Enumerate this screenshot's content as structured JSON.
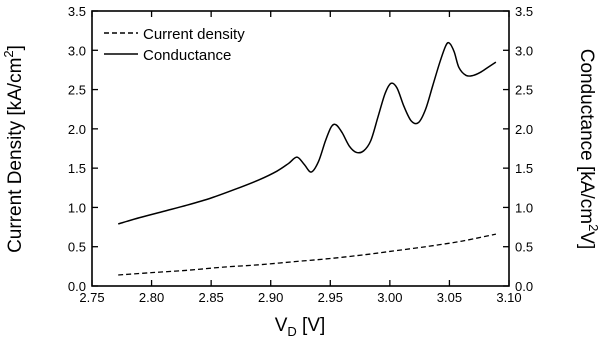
{
  "chart_data": {
    "type": "line",
    "xlabel": {
      "main": "V",
      "sub": "D",
      "unit": " [V]"
    },
    "ylabel_left": {
      "main": "Current Density [kA/cm",
      "sup": "2",
      "close": "]"
    },
    "ylabel_right": {
      "main": "Conductance [kA/cm",
      "sup": "2",
      "tail": "V]"
    },
    "xlim": [
      2.75,
      3.1
    ],
    "ylim": [
      0.0,
      3.5
    ],
    "xticks": [
      "2.75",
      "2.80",
      "2.85",
      "2.90",
      "2.95",
      "3.00",
      "3.05",
      "3.10"
    ],
    "yticks": [
      "0.0",
      "0.5",
      "1.0",
      "1.5",
      "2.0",
      "2.5",
      "3.0",
      "3.5"
    ],
    "yticks_right": [
      "0.0",
      "0.5",
      "1.0",
      "1.5",
      "2.0",
      "2.5",
      "3.0",
      "3.5"
    ],
    "legend_position": "top-left",
    "grid": false,
    "series": [
      {
        "name": "Current density",
        "style": "dashed",
        "axis": "left",
        "x": [
          2.772,
          2.8,
          2.83,
          2.86,
          2.89,
          2.92,
          2.95,
          2.98,
          3.0,
          3.03,
          3.06,
          3.089
        ],
        "y": [
          0.14,
          0.17,
          0.2,
          0.24,
          0.27,
          0.31,
          0.35,
          0.4,
          0.44,
          0.5,
          0.57,
          0.66
        ]
      },
      {
        "name": "Conductance",
        "style": "solid",
        "axis": "right",
        "x": [
          2.772,
          2.79,
          2.81,
          2.83,
          2.85,
          2.87,
          2.89,
          2.905,
          2.915,
          2.922,
          2.928,
          2.934,
          2.94,
          2.946,
          2.951,
          2.955,
          2.96,
          2.966,
          2.972,
          2.978,
          2.984,
          2.99,
          2.996,
          3.001,
          3.006,
          3.012,
          3.018,
          3.024,
          3.03,
          3.036,
          3.042,
          3.047,
          3.05,
          3.054,
          3.058,
          3.064,
          3.07,
          3.076,
          3.082,
          3.089
        ],
        "y": [
          0.79,
          0.87,
          0.95,
          1.03,
          1.12,
          1.23,
          1.35,
          1.46,
          1.56,
          1.64,
          1.55,
          1.45,
          1.58,
          1.85,
          2.03,
          2.05,
          1.95,
          1.78,
          1.7,
          1.72,
          1.85,
          2.15,
          2.45,
          2.58,
          2.52,
          2.28,
          2.1,
          2.08,
          2.25,
          2.55,
          2.85,
          3.06,
          3.09,
          2.98,
          2.78,
          2.68,
          2.68,
          2.72,
          2.78,
          2.85
        ]
      }
    ]
  }
}
